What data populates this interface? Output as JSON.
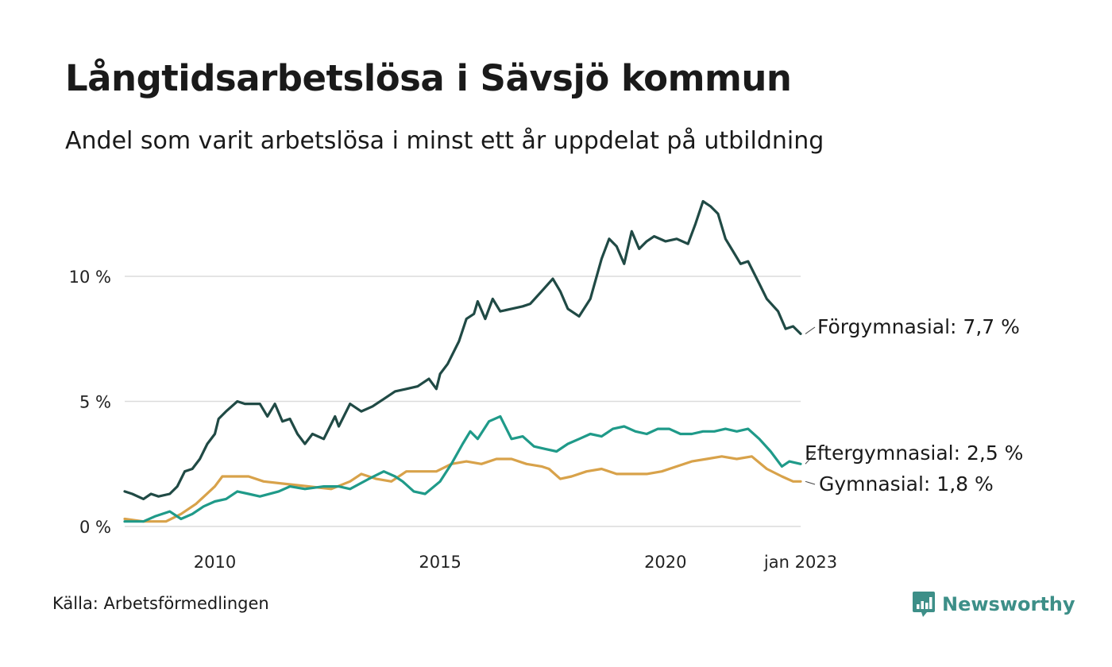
{
  "title": "Långtidsarbetslösa i Sävsjö kommun",
  "subtitle": "Andel som varit arbetslösa i minst ett år uppdelat på utbildning",
  "source": "Källa: Arbetsförmedlingen",
  "brand": {
    "name": "Newsworthy",
    "color": "#3d8f88"
  },
  "chart_data": {
    "type": "line",
    "x_range": [
      "2008-01",
      "2023-01"
    ],
    "ylim": [
      0,
      14
    ],
    "y_ticks": [
      {
        "value": 0,
        "label": "0 %"
      },
      {
        "value": 5,
        "label": "5 %"
      },
      {
        "value": 10,
        "label": "10 %"
      }
    ],
    "x_ticks": [
      {
        "value": "2010-01",
        "label": "2010"
      },
      {
        "value": "2015-01",
        "label": "2015"
      },
      {
        "value": "2020-01",
        "label": "2020"
      },
      {
        "value": "2023-01",
        "label": "jan 2023"
      }
    ],
    "grid": true,
    "series": [
      {
        "name": "Förgymnasial",
        "end_label": "Förgymnasial: 7,7 %",
        "color": "#204a45",
        "points": [
          [
            "2008-01",
            1.4
          ],
          [
            "2008-03",
            1.3
          ],
          [
            "2008-06",
            1.1
          ],
          [
            "2008-08",
            1.3
          ],
          [
            "2008-10",
            1.2
          ],
          [
            "2009-01",
            1.3
          ],
          [
            "2009-03",
            1.6
          ],
          [
            "2009-05",
            2.2
          ],
          [
            "2009-07",
            2.3
          ],
          [
            "2009-09",
            2.7
          ],
          [
            "2009-11",
            3.3
          ],
          [
            "2010-01",
            3.7
          ],
          [
            "2010-02",
            4.3
          ],
          [
            "2010-04",
            4.6
          ],
          [
            "2010-07",
            5.0
          ],
          [
            "2010-09",
            4.9
          ],
          [
            "2011-01",
            4.9
          ],
          [
            "2011-03",
            4.4
          ],
          [
            "2011-05",
            4.9
          ],
          [
            "2011-07",
            4.2
          ],
          [
            "2011-09",
            4.3
          ],
          [
            "2011-11",
            3.7
          ],
          [
            "2012-01",
            3.3
          ],
          [
            "2012-03",
            3.7
          ],
          [
            "2012-06",
            3.5
          ],
          [
            "2012-09",
            4.4
          ],
          [
            "2012-10",
            4.0
          ],
          [
            "2013-01",
            4.9
          ],
          [
            "2013-04",
            4.6
          ],
          [
            "2013-07",
            4.8
          ],
          [
            "2013-10",
            5.1
          ],
          [
            "2014-01",
            5.4
          ],
          [
            "2014-04",
            5.5
          ],
          [
            "2014-07",
            5.6
          ],
          [
            "2014-10",
            5.9
          ],
          [
            "2014-12",
            5.5
          ],
          [
            "2015-01",
            6.1
          ],
          [
            "2015-03",
            6.5
          ],
          [
            "2015-06",
            7.4
          ],
          [
            "2015-08",
            8.3
          ],
          [
            "2015-10",
            8.5
          ],
          [
            "2015-11",
            9.0
          ],
          [
            "2016-01",
            8.3
          ],
          [
            "2016-03",
            9.1
          ],
          [
            "2016-05",
            8.6
          ],
          [
            "2016-08",
            8.7
          ],
          [
            "2016-11",
            8.8
          ],
          [
            "2017-01",
            8.9
          ],
          [
            "2017-04",
            9.4
          ],
          [
            "2017-07",
            9.9
          ],
          [
            "2017-09",
            9.4
          ],
          [
            "2017-11",
            8.7
          ],
          [
            "2018-02",
            8.4
          ],
          [
            "2018-05",
            9.1
          ],
          [
            "2018-08",
            10.7
          ],
          [
            "2018-10",
            11.5
          ],
          [
            "2018-12",
            11.2
          ],
          [
            "2019-02",
            10.5
          ],
          [
            "2019-04",
            11.8
          ],
          [
            "2019-06",
            11.1
          ],
          [
            "2019-08",
            11.4
          ],
          [
            "2019-10",
            11.6
          ],
          [
            "2020-01",
            11.4
          ],
          [
            "2020-04",
            11.5
          ],
          [
            "2020-07",
            11.3
          ],
          [
            "2020-09",
            12.1
          ],
          [
            "2020-11",
            13.0
          ],
          [
            "2021-01",
            12.8
          ],
          [
            "2021-03",
            12.5
          ],
          [
            "2021-05",
            11.5
          ],
          [
            "2021-07",
            11.0
          ],
          [
            "2021-09",
            10.5
          ],
          [
            "2021-11",
            10.6
          ],
          [
            "2022-02",
            9.7
          ],
          [
            "2022-04",
            9.1
          ],
          [
            "2022-07",
            8.6
          ],
          [
            "2022-09",
            7.9
          ],
          [
            "2022-11",
            8.0
          ],
          [
            "2023-01",
            7.7
          ]
        ]
      },
      {
        "name": "Eftergymnasial",
        "end_label": "Eftergymnasial: 2,5 %",
        "color": "#1f9a89",
        "points": [
          [
            "2008-01",
            0.2
          ],
          [
            "2008-06",
            0.2
          ],
          [
            "2008-09",
            0.4
          ],
          [
            "2009-01",
            0.6
          ],
          [
            "2009-04",
            0.3
          ],
          [
            "2009-07",
            0.5
          ],
          [
            "2009-10",
            0.8
          ],
          [
            "2010-01",
            1.0
          ],
          [
            "2010-04",
            1.1
          ],
          [
            "2010-07",
            1.4
          ],
          [
            "2010-10",
            1.3
          ],
          [
            "2011-01",
            1.2
          ],
          [
            "2011-06",
            1.4
          ],
          [
            "2011-09",
            1.6
          ],
          [
            "2012-01",
            1.5
          ],
          [
            "2012-06",
            1.6
          ],
          [
            "2012-10",
            1.6
          ],
          [
            "2013-01",
            1.5
          ],
          [
            "2013-06",
            1.9
          ],
          [
            "2013-10",
            2.2
          ],
          [
            "2014-01",
            2.0
          ],
          [
            "2014-03",
            1.8
          ],
          [
            "2014-06",
            1.4
          ],
          [
            "2014-09",
            1.3
          ],
          [
            "2015-01",
            1.8
          ],
          [
            "2015-04",
            2.5
          ],
          [
            "2015-07",
            3.3
          ],
          [
            "2015-09",
            3.8
          ],
          [
            "2015-11",
            3.5
          ],
          [
            "2016-02",
            4.2
          ],
          [
            "2016-05",
            4.4
          ],
          [
            "2016-08",
            3.5
          ],
          [
            "2016-11",
            3.6
          ],
          [
            "2017-02",
            3.2
          ],
          [
            "2017-05",
            3.1
          ],
          [
            "2017-08",
            3.0
          ],
          [
            "2017-11",
            3.3
          ],
          [
            "2018-02",
            3.5
          ],
          [
            "2018-05",
            3.7
          ],
          [
            "2018-08",
            3.6
          ],
          [
            "2018-11",
            3.9
          ],
          [
            "2019-02",
            4.0
          ],
          [
            "2019-05",
            3.8
          ],
          [
            "2019-08",
            3.7
          ],
          [
            "2019-11",
            3.9
          ],
          [
            "2020-02",
            3.9
          ],
          [
            "2020-05",
            3.7
          ],
          [
            "2020-08",
            3.7
          ],
          [
            "2020-11",
            3.8
          ],
          [
            "2021-02",
            3.8
          ],
          [
            "2021-05",
            3.9
          ],
          [
            "2021-08",
            3.8
          ],
          [
            "2021-11",
            3.9
          ],
          [
            "2022-02",
            3.5
          ],
          [
            "2022-05",
            3.0
          ],
          [
            "2022-08",
            2.4
          ],
          [
            "2022-10",
            2.6
          ],
          [
            "2023-01",
            2.5
          ]
        ]
      },
      {
        "name": "Gymnasial",
        "end_label": "Gymnasial: 1,8 %",
        "color": "#d8a24a",
        "points": [
          [
            "2008-01",
            0.3
          ],
          [
            "2008-06",
            0.2
          ],
          [
            "2008-12",
            0.2
          ],
          [
            "2009-04",
            0.5
          ],
          [
            "2009-08",
            0.9
          ],
          [
            "2010-01",
            1.6
          ],
          [
            "2010-03",
            2.0
          ],
          [
            "2010-10",
            2.0
          ],
          [
            "2011-02",
            1.8
          ],
          [
            "2011-08",
            1.7
          ],
          [
            "2012-02",
            1.6
          ],
          [
            "2012-08",
            1.5
          ],
          [
            "2013-01",
            1.8
          ],
          [
            "2013-04",
            2.1
          ],
          [
            "2013-08",
            1.9
          ],
          [
            "2013-12",
            1.8
          ],
          [
            "2014-04",
            2.2
          ],
          [
            "2014-08",
            2.2
          ],
          [
            "2014-12",
            2.2
          ],
          [
            "2015-04",
            2.5
          ],
          [
            "2015-08",
            2.6
          ],
          [
            "2015-12",
            2.5
          ],
          [
            "2016-04",
            2.7
          ],
          [
            "2016-08",
            2.7
          ],
          [
            "2016-12",
            2.5
          ],
          [
            "2017-04",
            2.4
          ],
          [
            "2017-06",
            2.3
          ],
          [
            "2017-09",
            1.9
          ],
          [
            "2017-12",
            2.0
          ],
          [
            "2018-04",
            2.2
          ],
          [
            "2018-08",
            2.3
          ],
          [
            "2018-12",
            2.1
          ],
          [
            "2019-04",
            2.1
          ],
          [
            "2019-08",
            2.1
          ],
          [
            "2019-12",
            2.2
          ],
          [
            "2020-04",
            2.4
          ],
          [
            "2020-08",
            2.6
          ],
          [
            "2020-12",
            2.7
          ],
          [
            "2021-04",
            2.8
          ],
          [
            "2021-08",
            2.7
          ],
          [
            "2021-12",
            2.8
          ],
          [
            "2022-04",
            2.3
          ],
          [
            "2022-08",
            2.0
          ],
          [
            "2022-11",
            1.8
          ],
          [
            "2023-01",
            1.8
          ]
        ]
      }
    ]
  }
}
